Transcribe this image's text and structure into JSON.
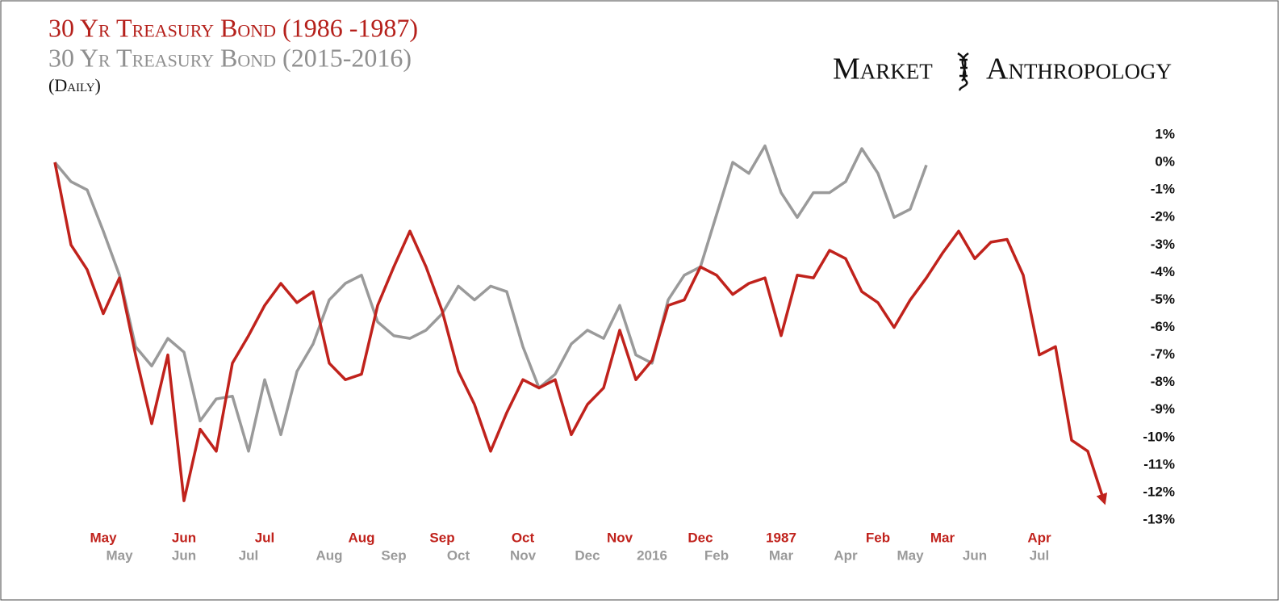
{
  "chart_data": {
    "type": "line",
    "title": "30 Yr Treasury Bond (1986 -1987)",
    "subtitle": "30 Yr Treasury Bond (2015-2016)",
    "note": "(Daily)",
    "logo": [
      "Market",
      "Anthropology"
    ],
    "ylim": [
      -13.5,
      1.5
    ],
    "yticks": [
      {
        "value": 1,
        "label": "1%"
      },
      {
        "value": 0,
        "label": "0%"
      },
      {
        "value": -1,
        "label": "-1%"
      },
      {
        "value": -2,
        "label": "-2%"
      },
      {
        "value": -3,
        "label": "-3%"
      },
      {
        "value": -4,
        "label": "-4%"
      },
      {
        "value": -5,
        "label": "-5%"
      },
      {
        "value": -6,
        "label": "-6%"
      },
      {
        "value": -7,
        "label": "-7%"
      },
      {
        "value": -8,
        "label": "-8%"
      },
      {
        "value": -9,
        "label": "-9%"
      },
      {
        "value": -10,
        "label": "-10%"
      },
      {
        "value": -11,
        "label": "-11%"
      },
      {
        "value": -12,
        "label": "-12%"
      },
      {
        "value": -13,
        "label": "-13%"
      }
    ],
    "grid": false,
    "series": [
      {
        "name": "30 Yr Treasury Bond (1986 -1987)",
        "color": "#c0221c",
        "categories": [
          null,
          null,
          null,
          "May",
          null,
          null,
          null,
          null,
          "Jun",
          null,
          null,
          null,
          null,
          "Jul",
          null,
          null,
          null,
          null,
          null,
          "Aug",
          null,
          null,
          null,
          null,
          "Sep",
          null,
          null,
          null,
          null,
          "Oct",
          null,
          null,
          null,
          null,
          null,
          "Nov",
          null,
          null,
          null,
          null,
          "Dec",
          null,
          null,
          null,
          null,
          "1987",
          null,
          null,
          null,
          null,
          null,
          "Feb",
          null,
          null,
          null,
          "Mar",
          null,
          null,
          null,
          null,
          null,
          "Apr",
          null,
          null,
          null,
          null
        ],
        "values": [
          0,
          -3.0,
          -3.9,
          -5.5,
          -4.2,
          -7.0,
          -9.5,
          -7.0,
          -12.3,
          -9.7,
          -10.5,
          -7.3,
          -6.3,
          -5.2,
          -4.4,
          -5.1,
          -4.7,
          -7.3,
          -7.9,
          -7.7,
          -5.2,
          -3.8,
          -2.5,
          -3.8,
          -5.4,
          -7.6,
          -8.8,
          -10.5,
          -9.1,
          -7.9,
          -8.2,
          -7.9,
          -9.9,
          -8.8,
          -8.2,
          -6.1,
          -7.9,
          -7.2,
          -5.2,
          -5.0,
          -3.8,
          -4.1,
          -4.8,
          -4.4,
          -4.2,
          -6.3,
          -4.1,
          -4.2,
          -3.2,
          -3.5,
          -4.7,
          -5.1,
          -6.0,
          -5.0,
          -4.2,
          -3.3,
          -2.5,
          -3.5,
          -2.9,
          -2.8,
          -4.1,
          -7.0,
          -6.7,
          -10.1,
          -10.5,
          -12.3
        ]
      },
      {
        "name": "30 Yr Treasury Bond (2015-2016)",
        "color": "#9a9a9a",
        "categories": [
          null,
          null,
          null,
          null,
          "May",
          null,
          null,
          null,
          "Jun",
          null,
          null,
          null,
          "Jul",
          null,
          null,
          null,
          null,
          "Aug",
          null,
          null,
          null,
          "Sep",
          null,
          null,
          null,
          "Oct",
          null,
          null,
          null,
          "Nov",
          null,
          null,
          null,
          "Dec",
          null,
          null,
          null,
          "2016",
          null,
          null,
          null,
          "Feb",
          null,
          null,
          null,
          "Mar",
          null,
          null,
          null,
          "Apr",
          null,
          null,
          null,
          "May",
          null,
          null,
          null,
          "Jun",
          null,
          null,
          null,
          "Jul",
          null,
          null,
          null,
          null
        ],
        "values": [
          0,
          -0.7,
          -1.0,
          -2.5,
          -4.1,
          -6.7,
          -7.4,
          -6.4,
          -6.9,
          -9.4,
          -8.6,
          -8.5,
          -10.5,
          -7.9,
          -9.9,
          -7.6,
          -6.6,
          -5.0,
          -4.4,
          -4.1,
          -5.8,
          -6.3,
          -6.4,
          -6.1,
          -5.5,
          -4.5,
          -5.0,
          -4.5,
          -4.7,
          -6.7,
          -8.2,
          -7.7,
          -6.6,
          -6.1,
          -6.4,
          -5.2,
          -7.0,
          -7.3,
          -5.0,
          -4.1,
          -3.8,
          -1.9,
          0.0,
          -0.4,
          0.6,
          -1.1,
          -2.0,
          -1.1,
          -1.1,
          -0.7,
          0.5,
          -0.4,
          -2.0,
          -1.7,
          -0.1,
          null,
          null,
          null,
          null,
          null,
          null,
          null,
          null,
          null,
          null,
          null
        ]
      }
    ]
  }
}
